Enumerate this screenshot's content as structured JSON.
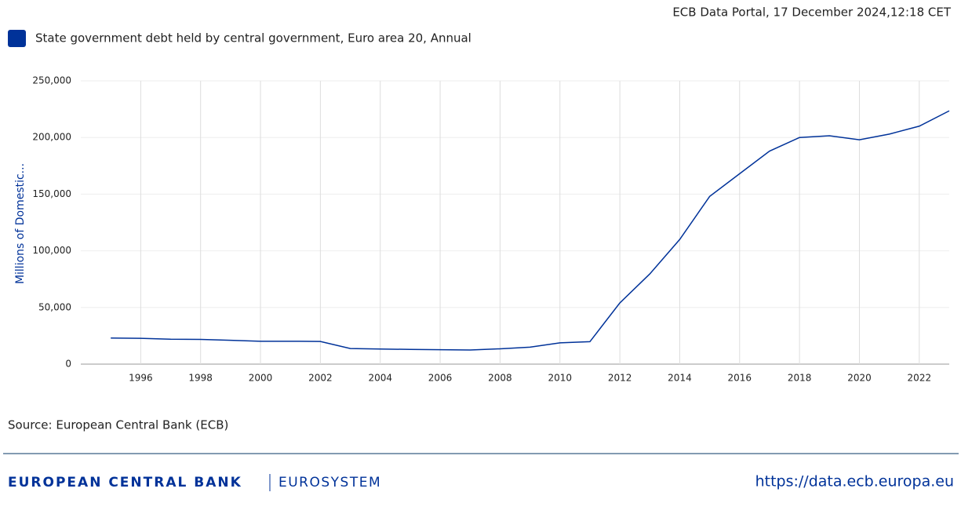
{
  "header": {
    "timestamp": "ECB Data Portal, 17 December 2024,12:18 CET"
  },
  "chart_data": {
    "type": "line",
    "y_label": "Millions of Domestic...",
    "series": [
      {
        "name": "State government debt held by central government, Euro area 20, Annual",
        "color": "#003299",
        "values": [
          23000,
          22800,
          22000,
          21800,
          21000,
          20200,
          20200,
          20000,
          13800,
          13300,
          13000,
          12700,
          12500,
          13500,
          15000,
          18800,
          19800,
          54000,
          79600,
          110000,
          148000,
          168000,
          188000,
          200000,
          201500,
          198000,
          203000,
          210000,
          223500
        ]
      }
    ],
    "x": [
      1995,
      1996,
      1997,
      1998,
      1999,
      2000,
      2001,
      2002,
      2003,
      2004,
      2005,
      2006,
      2007,
      2008,
      2009,
      2010,
      2011,
      2012,
      2013,
      2014,
      2015,
      2016,
      2017,
      2018,
      2019,
      2020,
      2021,
      2022,
      2023
    ],
    "xlim": [
      1994,
      2023
    ],
    "xticks": [
      1996,
      1998,
      2000,
      2002,
      2004,
      2006,
      2008,
      2010,
      2012,
      2014,
      2016,
      2018,
      2020,
      2022
    ],
    "ylim": [
      0,
      250000
    ],
    "yticks": [
      0,
      {
        "value": 50000,
        "label": "50,000"
      },
      {
        "value": 100000,
        "label": "100,000"
      },
      {
        "value": 150000,
        "label": "150,000"
      },
      {
        "value": 200000,
        "label": "200,000"
      },
      {
        "value": 250000,
        "label": "250,000"
      }
    ],
    "grid": true
  },
  "source": "Source: European Central Bank (ECB)",
  "footer": {
    "bank": "EUROPEAN CENTRAL BANK",
    "system": "EUROSYSTEM",
    "url": "https://data.ecb.europa.eu"
  }
}
